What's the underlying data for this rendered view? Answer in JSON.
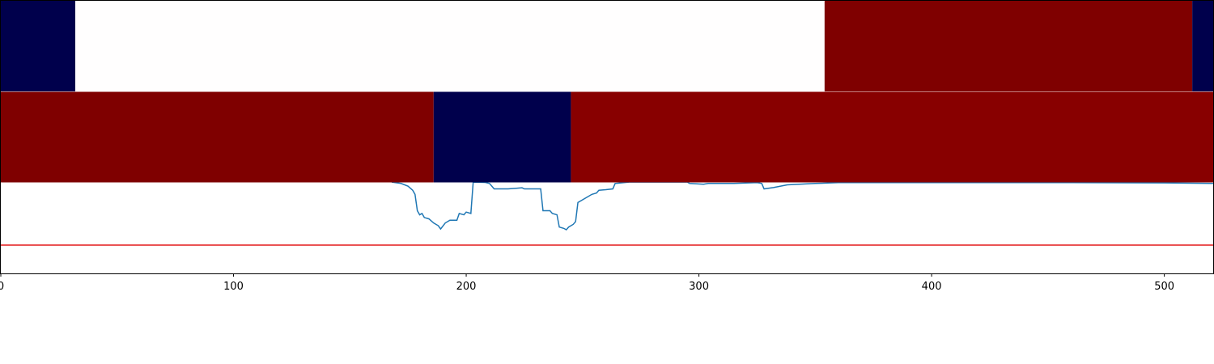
{
  "chart_data": {
    "type": "line",
    "xlim": [
      0,
      521
    ],
    "ylim": [
      0,
      1
    ],
    "xticks": [
      0,
      100,
      200,
      300,
      400,
      500
    ],
    "threshold": {
      "value": 0.104,
      "color": "#e31a1c"
    },
    "bands": [
      {
        "segments": [
          {
            "start": 0,
            "end": 32,
            "color": "#00004c"
          },
          {
            "start": 32,
            "end": 354,
            "color": "#fffefe"
          },
          {
            "start": 354,
            "end": 512,
            "color": "#7f0000"
          },
          {
            "start": 512,
            "end": 521,
            "color": "#00004c"
          }
        ]
      },
      {
        "segments": [
          {
            "start": 0,
            "end": 186,
            "color": "#7f0000"
          },
          {
            "start": 186,
            "end": 245,
            "color": "#00004c"
          },
          {
            "start": 245,
            "end": 521,
            "color": "#880000"
          }
        ]
      }
    ],
    "series": [
      {
        "color": "#1f77b4",
        "x": [
          168,
          172,
          175,
          177,
          178,
          179,
          180,
          181,
          182,
          184,
          186,
          188,
          189,
          191,
          193,
          196,
          197,
          199,
          200,
          202,
          203,
          208,
          210,
          211,
          212,
          215,
          218,
          224,
          225,
          232,
          233,
          236,
          237,
          239,
          240,
          242,
          243,
          244,
          246,
          247,
          248,
          250,
          252,
          254,
          256,
          257,
          260,
          263,
          264,
          270,
          295,
          296,
          302,
          304,
          310,
          315,
          325,
          327,
          328,
          332,
          338,
          350,
          360,
          400,
          460,
          500,
          521
        ],
        "values": [
          0.335,
          0.33,
          0.32,
          0.305,
          0.29,
          0.23,
          0.215,
          0.22,
          0.205,
          0.2,
          0.185,
          0.175,
          0.163,
          0.185,
          0.195,
          0.195,
          0.22,
          0.215,
          0.225,
          0.22,
          0.335,
          0.334,
          0.33,
          0.32,
          0.31,
          0.31,
          0.31,
          0.314,
          0.31,
          0.31,
          0.23,
          0.23,
          0.22,
          0.215,
          0.17,
          0.165,
          0.16,
          0.17,
          0.18,
          0.19,
          0.26,
          0.27,
          0.28,
          0.29,
          0.295,
          0.305,
          0.307,
          0.31,
          0.33,
          0.335,
          0.335,
          0.33,
          0.327,
          0.33,
          0.33,
          0.33,
          0.333,
          0.33,
          0.31,
          0.315,
          0.325,
          0.33,
          0.333,
          0.333,
          0.333,
          0.332,
          0.33
        ]
      }
    ]
  }
}
